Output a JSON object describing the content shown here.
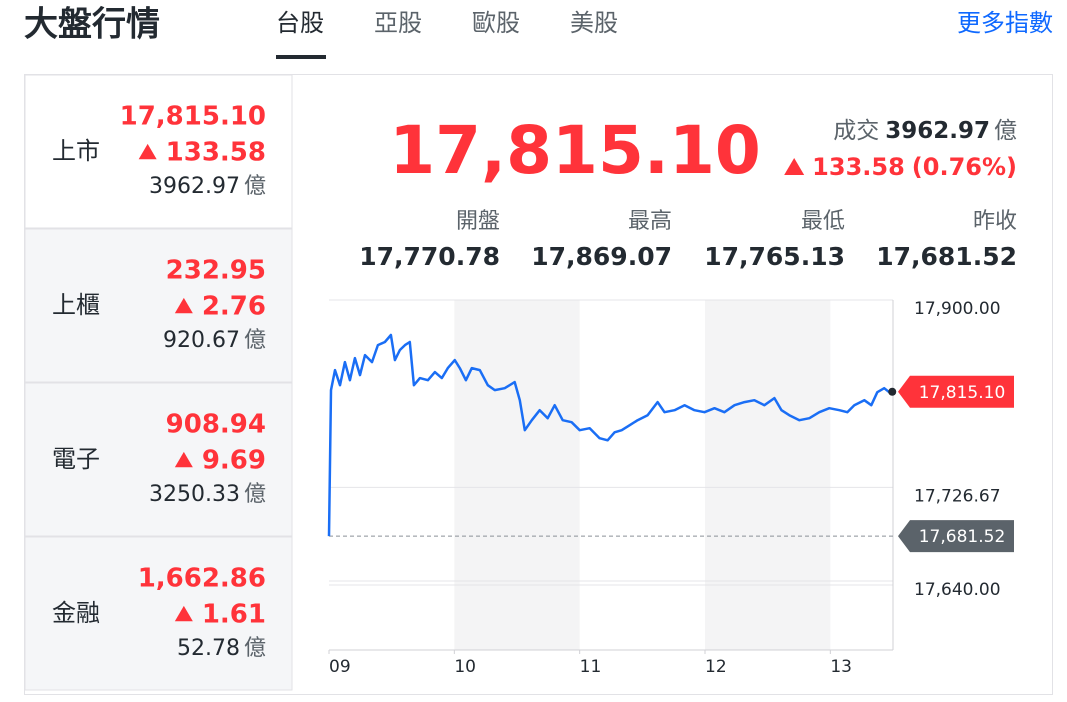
{
  "header": {
    "title": "大盤行情",
    "tabs": [
      "台股",
      "亞股",
      "歐股",
      "美股"
    ],
    "active_tab": 0,
    "more_link": "更多指數"
  },
  "markets": [
    {
      "name": "上市",
      "price": "17,815.10",
      "change": "133.58",
      "volume": "3962.97",
      "unit": "億"
    },
    {
      "name": "上櫃",
      "price": "232.95",
      "change": "2.76",
      "volume": "920.67",
      "unit": "億"
    },
    {
      "name": "電子",
      "price": "908.94",
      "change": "9.69",
      "volume": "3250.33",
      "unit": "億"
    },
    {
      "name": "金融",
      "price": "1,662.86",
      "change": "1.61",
      "volume": "52.78",
      "unit": "億"
    }
  ],
  "quote": {
    "price": "17,815.10",
    "volume_label": "成交",
    "volume": "3962.97",
    "volume_unit": "億",
    "change": "133.58",
    "change_pct": "(0.76%)",
    "stats": [
      {
        "label": "開盤",
        "value": "17,770.78"
      },
      {
        "label": "最高",
        "value": "17,869.07"
      },
      {
        "label": "最低",
        "value": "17,765.13"
      },
      {
        "label": "昨收",
        "value": "17,681.52"
      }
    ]
  },
  "chart_data": {
    "type": "line",
    "color": "#1a6ef5",
    "x": [
      9.0,
      9.016,
      9.048,
      9.088,
      9.127,
      9.167,
      9.207,
      9.247,
      9.287,
      9.343,
      9.39,
      9.446,
      9.494,
      9.526,
      9.566,
      9.606,
      9.645,
      9.677,
      9.725,
      9.789,
      9.845,
      9.9,
      9.948,
      10.004,
      10.044,
      10.092,
      10.139,
      10.203,
      10.267,
      10.323,
      10.402,
      10.482,
      10.522,
      10.562,
      10.618,
      10.681,
      10.745,
      10.801,
      10.865,
      10.936,
      11.0,
      11.08,
      11.159,
      11.223,
      11.279,
      11.335,
      11.398,
      11.462,
      11.542,
      11.622,
      11.677,
      11.757,
      11.837,
      11.916,
      11.996,
      12.076,
      12.155,
      12.235,
      12.315,
      12.394,
      12.474,
      12.554,
      12.61,
      12.673,
      12.753,
      12.833,
      12.912,
      12.992,
      13.072,
      13.135,
      13.191,
      13.271,
      13.327,
      13.375,
      13.43,
      13.47,
      13.494
    ],
    "values": [
      17681.5,
      17816.6,
      17835.1,
      17821.2,
      17842.5,
      17825.8,
      17846.2,
      17830.5,
      17849.0,
      17842.5,
      17858.3,
      17861.1,
      17867.6,
      17844.4,
      17853.7,
      17858.3,
      17861.1,
      17821.2,
      17827.7,
      17825.8,
      17833.3,
      17827.7,
      17837.0,
      17844.4,
      17837.0,
      17825.8,
      17837.0,
      17835.1,
      17821.2,
      17816.6,
      17818.4,
      17824.0,
      17807.3,
      17779.5,
      17788.8,
      17798.0,
      17790.6,
      17802.7,
      17788.8,
      17786.9,
      17779.5,
      17781.4,
      17772.1,
      17770.2,
      17777.6,
      17779.5,
      17784.1,
      17788.8,
      17793.4,
      17805.5,
      17796.2,
      17798.0,
      17802.7,
      17798.0,
      17796.2,
      17799.9,
      17796.2,
      17802.7,
      17805.5,
      17807.3,
      17802.7,
      17809.2,
      17798.0,
      17793.4,
      17788.8,
      17790.6,
      17796.2,
      17799.9,
      17798.0,
      17796.2,
      17802.7,
      17807.3,
      17802.7,
      17814.7,
      17818.4,
      17814.7,
      17815.1
    ],
    "xlim": [
      9,
      13.5
    ],
    "ylim": [
      17640,
      17900
    ],
    "xticks": [
      {
        "value": 9,
        "label": "09"
      },
      10,
      11,
      12,
      13
    ],
    "yticks": [
      {
        "value": 17900,
        "label": "17,900.00"
      },
      {
        "value": 17726.67,
        "label": "17,726.67"
      },
      {
        "value": 17640,
        "label": "17,640.00"
      }
    ],
    "grid": true,
    "price_tag": {
      "value": 17815.1,
      "label": "17,815.10",
      "color": "#ff333a"
    },
    "reference": {
      "value": 17681.52,
      "label": "17,681.52",
      "color": "#5b636a"
    }
  }
}
